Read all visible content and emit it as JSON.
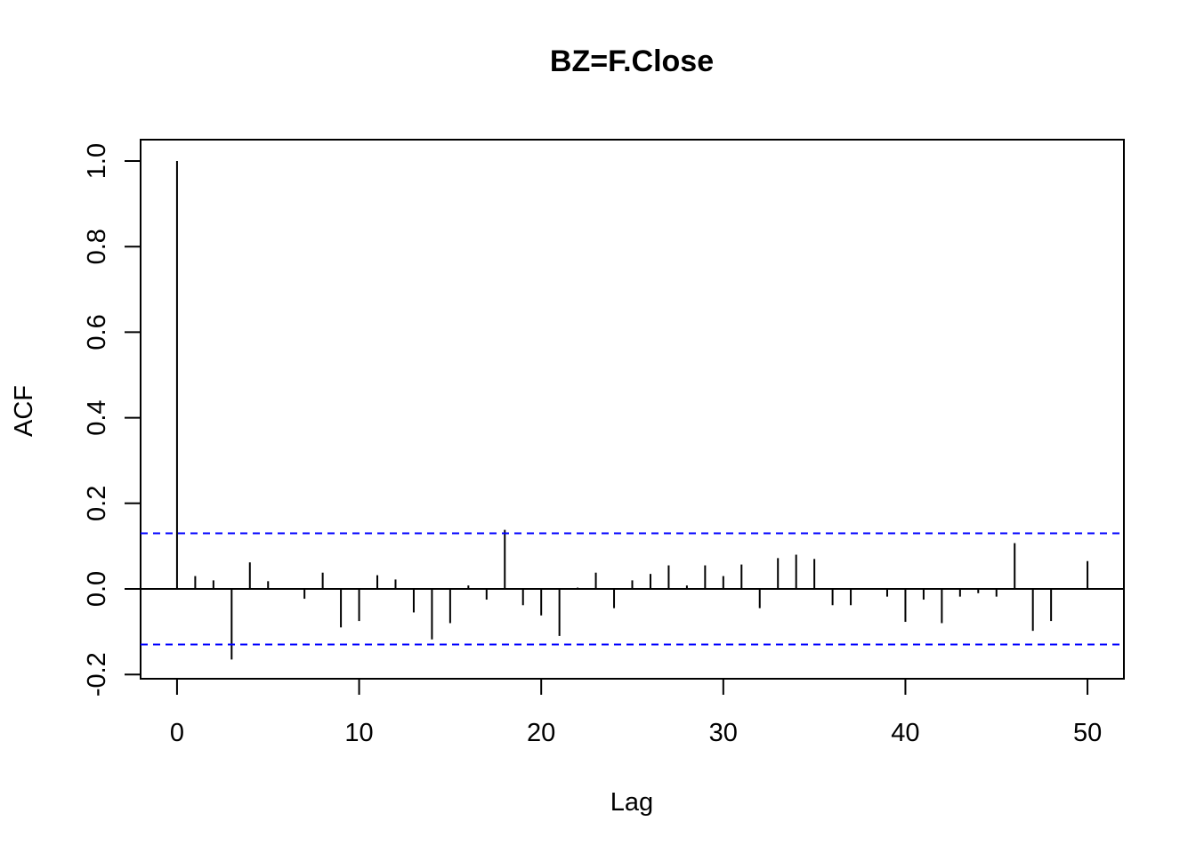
{
  "chart_data": {
    "type": "bar",
    "title": "BZ=F.Close",
    "xlabel": "Lag",
    "ylabel": "ACF",
    "xlim": [
      -2,
      52
    ],
    "ylim": [
      -0.21,
      1.05
    ],
    "x_ticks": [
      0,
      10,
      20,
      30,
      40,
      50
    ],
    "x_tick_labels": [
      "0",
      "10",
      "20",
      "30",
      "40",
      "50"
    ],
    "y_ticks": [
      -0.2,
      0.0,
      0.2,
      0.4,
      0.6,
      0.8,
      1.0
    ],
    "y_tick_labels": [
      "-0.2",
      "0.0",
      "0.2",
      "0.4",
      "0.6",
      "0.8",
      "1.0"
    ],
    "confidence_bound": 0.13,
    "confidence_color": "#0000ff",
    "lags": [
      0,
      1,
      2,
      3,
      4,
      5,
      6,
      7,
      8,
      9,
      10,
      11,
      12,
      13,
      14,
      15,
      16,
      17,
      18,
      19,
      20,
      21,
      22,
      23,
      24,
      25,
      26,
      27,
      28,
      29,
      30,
      31,
      32,
      33,
      34,
      35,
      36,
      37,
      38,
      39,
      40,
      41,
      42,
      43,
      44,
      45,
      46,
      47,
      48,
      49,
      50
    ],
    "acf": [
      1.0,
      0.03,
      0.02,
      -0.165,
      0.062,
      0.018,
      0.0,
      -0.023,
      0.038,
      -0.09,
      -0.075,
      0.032,
      0.022,
      -0.055,
      -0.118,
      -0.08,
      0.008,
      -0.025,
      0.138,
      -0.038,
      -0.062,
      -0.11,
      0.003,
      0.038,
      -0.045,
      0.02,
      0.035,
      0.055,
      0.008,
      0.055,
      0.03,
      0.057,
      -0.045,
      0.072,
      0.08,
      0.07,
      -0.038,
      -0.038,
      0.0,
      -0.018,
      -0.077,
      -0.025,
      -0.08,
      -0.018,
      -0.01,
      -0.018,
      0.107,
      -0.098,
      -0.075,
      0.0,
      0.065
    ]
  }
}
